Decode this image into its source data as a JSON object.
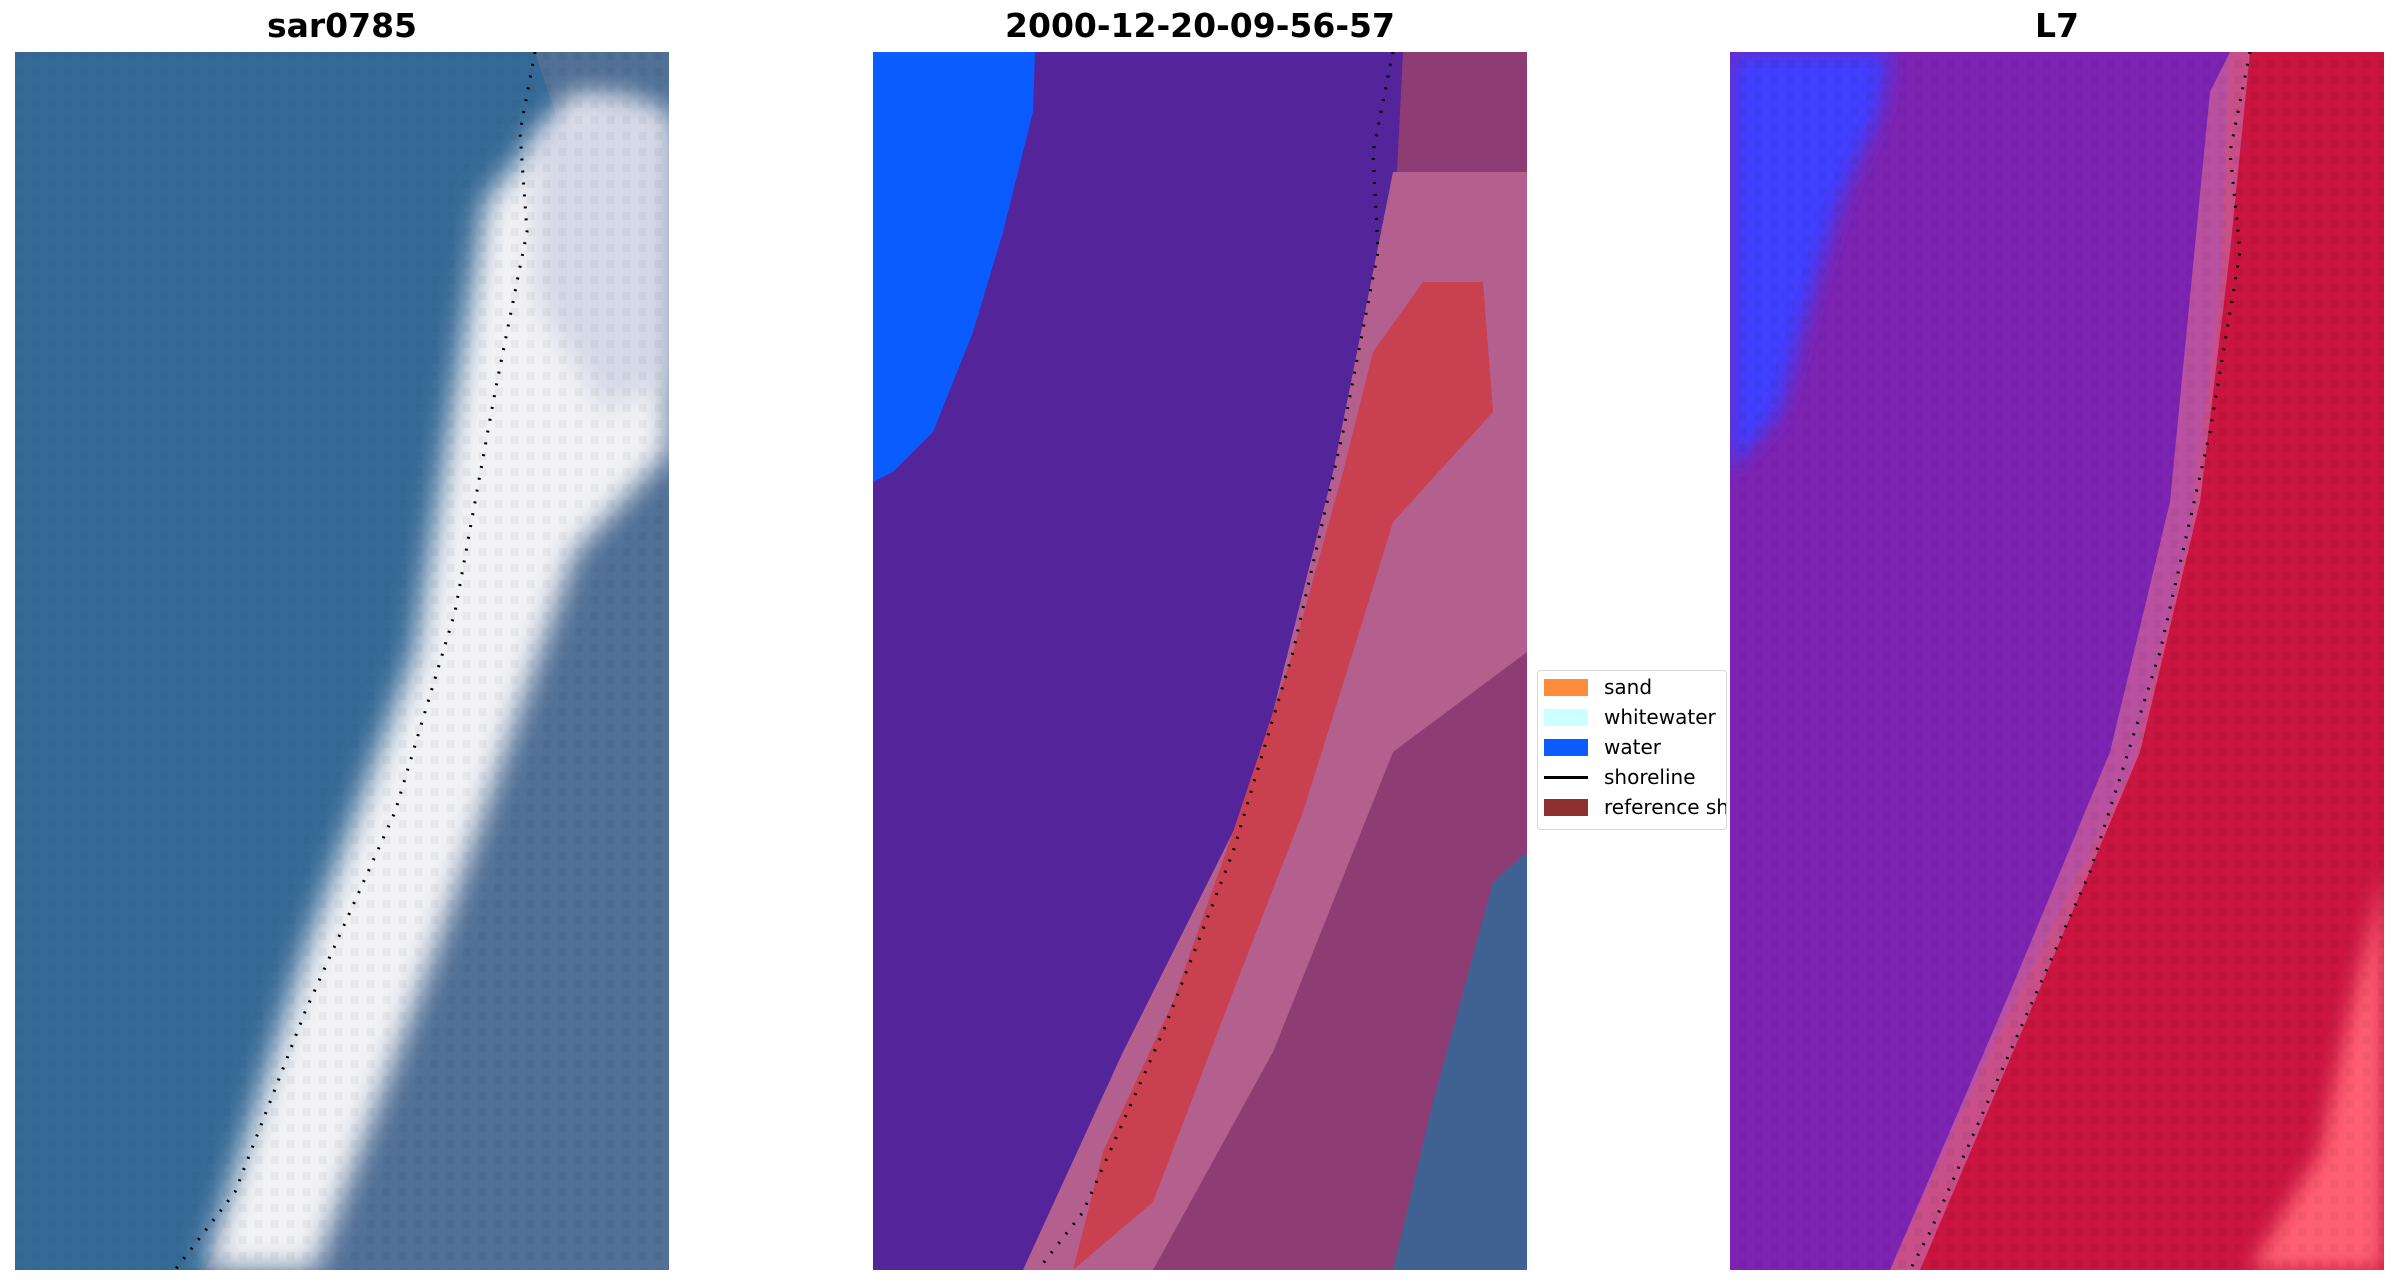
{
  "titles": {
    "left": "sar0785",
    "center": "2000-12-20-09-56-57",
    "right": "L7"
  },
  "legend": {
    "items": [
      {
        "label": "sand",
        "kind": "patch",
        "color": "#ff8c3c"
      },
      {
        "label": "whitewater",
        "kind": "patch",
        "color": "#ccffff"
      },
      {
        "label": "water",
        "kind": "patch",
        "color": "#0a5cff"
      },
      {
        "label": "shoreline",
        "kind": "line",
        "color": "#000000"
      },
      {
        "label": "reference sh",
        "kind": "patch",
        "color": "#8e3030"
      }
    ]
  },
  "colors": {
    "ocean_rgb": "#2f6593",
    "surf_rgb": "#f2f2f5",
    "land_rgb": "#4a6b93",
    "class_nonwater": "#53249a",
    "class_water": "#0a5cff",
    "class_sand": "#c94050",
    "class_beach": "#b3608e",
    "class_land": "#8e3d74",
    "ndwi_water": "#7a1fb0",
    "ndwi_land": "#c8103c",
    "ndwi_deep": "#3a3aff",
    "shoreline_dots": "#000000"
  }
}
